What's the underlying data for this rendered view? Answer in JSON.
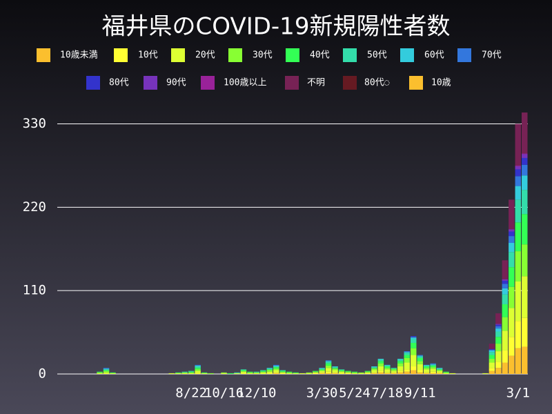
{
  "chart_data": {
    "type": "stacked-bar",
    "title": "福井県のCOVID-19新規陽性者数",
    "categories": [
      null,
      null,
      null,
      null,
      null,
      null,
      null,
      null,
      null,
      null,
      null,
      null,
      null,
      null,
      null,
      null,
      null,
      null,
      null,
      null,
      "8/22",
      null,
      null,
      null,
      null,
      "10/16",
      null,
      null,
      null,
      null,
      "12/10",
      null,
      null,
      null,
      null,
      null,
      null,
      null,
      null,
      null,
      "3/30",
      null,
      null,
      null,
      null,
      "5/24",
      null,
      null,
      null,
      null,
      "7/18",
      null,
      null,
      null,
      null,
      "9/11",
      null,
      null,
      null,
      null,
      null,
      null,
      null,
      null,
      null,
      null,
      null,
      null,
      null,
      null,
      "3/1",
      null
    ],
    "ylim": [
      0,
      366
    ],
    "yticks": [
      0,
      110,
      220,
      330
    ],
    "grid": true,
    "series": [
      {
        "name": "10歳未満",
        "color": "#fbbf2e",
        "values": [
          0,
          0,
          0,
          0,
          0,
          0,
          0,
          0,
          0,
          0,
          0,
          0,
          0,
          0,
          0,
          0,
          0,
          0,
          0,
          0,
          0,
          0,
          0,
          0,
          0,
          0,
          0,
          0,
          0,
          0,
          0,
          0,
          0,
          1,
          0,
          0,
          0,
          0,
          0,
          0,
          1,
          1,
          1,
          0,
          0,
          0,
          0,
          0,
          1,
          2,
          1,
          1,
          2,
          3,
          5,
          2,
          1,
          1,
          1,
          0,
          0,
          0,
          0,
          0,
          0,
          0,
          4,
          8,
          15,
          24,
          34,
          36
        ]
      },
      {
        "name": "10代",
        "color": "#ffff33",
        "values": [
          0,
          0,
          0,
          0,
          0,
          0,
          0,
          0,
          0,
          0,
          0,
          0,
          0,
          0,
          0,
          0,
          0,
          0,
          0,
          0,
          0,
          1,
          0,
          0,
          0,
          0,
          0,
          0,
          1,
          0,
          0,
          0,
          1,
          1,
          1,
          0,
          0,
          0,
          0,
          1,
          1,
          2,
          1,
          1,
          1,
          0,
          0,
          1,
          1,
          2,
          1,
          1,
          2,
          3,
          5,
          3,
          1,
          2,
          1,
          0,
          0,
          0,
          0,
          0,
          0,
          0,
          4,
          8,
          16,
          25,
          36,
          38
        ]
      },
      {
        "name": "20代",
        "color": "#ddff33",
        "values": [
          0,
          0,
          0,
          0,
          0,
          0,
          1,
          2,
          1,
          0,
          0,
          0,
          0,
          0,
          0,
          0,
          0,
          1,
          1,
          1,
          1,
          3,
          1,
          0,
          0,
          1,
          0,
          1,
          2,
          1,
          1,
          2,
          2,
          3,
          1,
          1,
          1,
          1,
          1,
          1,
          2,
          5,
          3,
          2,
          1,
          1,
          1,
          1,
          3,
          6,
          4,
          2,
          6,
          9,
          15,
          8,
          4,
          4,
          2,
          1,
          1,
          0,
          0,
          0,
          0,
          1,
          7,
          14,
          26,
          38,
          52,
          55
        ]
      },
      {
        "name": "30代",
        "color": "#88ff33",
        "values": [
          0,
          0,
          0,
          0,
          0,
          0,
          1,
          2,
          0,
          0,
          0,
          0,
          0,
          0,
          0,
          0,
          0,
          0,
          0,
          1,
          1,
          2,
          0,
          1,
          0,
          1,
          0,
          0,
          1,
          1,
          1,
          1,
          2,
          2,
          1,
          1,
          0,
          0,
          1,
          1,
          1,
          3,
          2,
          1,
          1,
          1,
          1,
          1,
          2,
          4,
          2,
          2,
          4,
          6,
          9,
          4,
          2,
          2,
          1,
          1,
          0,
          0,
          0,
          0,
          0,
          0,
          5,
          10,
          18,
          28,
          40,
          42
        ]
      },
      {
        "name": "40代",
        "color": "#33ff55",
        "values": [
          0,
          0,
          0,
          0,
          0,
          0,
          1,
          1,
          1,
          0,
          0,
          0,
          0,
          0,
          0,
          0,
          0,
          0,
          1,
          0,
          1,
          2,
          1,
          0,
          0,
          0,
          1,
          0,
          1,
          1,
          0,
          1,
          1,
          2,
          1,
          1,
          1,
          0,
          0,
          1,
          1,
          3,
          1,
          1,
          1,
          1,
          0,
          1,
          1,
          3,
          2,
          1,
          3,
          4,
          7,
          4,
          2,
          2,
          1,
          1,
          0,
          0,
          0,
          0,
          0,
          0,
          5,
          9,
          17,
          26,
          38,
          40
        ]
      },
      {
        "name": "50代",
        "color": "#33ddaa",
        "values": [
          0,
          0,
          0,
          0,
          0,
          0,
          0,
          1,
          0,
          0,
          0,
          0,
          0,
          0,
          0,
          0,
          0,
          0,
          0,
          1,
          1,
          2,
          0,
          0,
          0,
          0,
          0,
          1,
          1,
          0,
          1,
          1,
          1,
          1,
          1,
          0,
          0,
          0,
          0,
          0,
          1,
          2,
          1,
          1,
          0,
          0,
          0,
          0,
          1,
          2,
          1,
          1,
          2,
          3,
          5,
          2,
          1,
          1,
          1,
          0,
          0,
          0,
          0,
          0,
          0,
          0,
          4,
          7,
          13,
          20,
          30,
          32
        ]
      },
      {
        "name": "60代",
        "color": "#33ccdd",
        "values": [
          0,
          0,
          0,
          0,
          0,
          0,
          0,
          1,
          0,
          0,
          0,
          0,
          0,
          0,
          0,
          0,
          0,
          0,
          0,
          0,
          0,
          1,
          0,
          0,
          0,
          0,
          0,
          0,
          0,
          0,
          0,
          0,
          1,
          1,
          0,
          0,
          0,
          0,
          0,
          0,
          1,
          1,
          1,
          0,
          0,
          0,
          0,
          0,
          1,
          1,
          1,
          0,
          1,
          1,
          2,
          1,
          1,
          1,
          1,
          0,
          0,
          0,
          0,
          0,
          0,
          0,
          2,
          4,
          8,
          12,
          18,
          19
        ]
      },
      {
        "name": "70代",
        "color": "#3377dd",
        "values": [
          0,
          0,
          0,
          0,
          0,
          0,
          0,
          1,
          0,
          0,
          0,
          0,
          0,
          0,
          0,
          0,
          0,
          0,
          0,
          0,
          0,
          1,
          0,
          0,
          0,
          0,
          0,
          0,
          0,
          0,
          0,
          0,
          0,
          1,
          0,
          0,
          0,
          0,
          0,
          0,
          0,
          1,
          0,
          0,
          0,
          0,
          0,
          0,
          0,
          0,
          0,
          0,
          0,
          1,
          1,
          1,
          0,
          1,
          0,
          0,
          0,
          0,
          0,
          0,
          0,
          0,
          1,
          3,
          6,
          9,
          13,
          14
        ]
      },
      {
        "name": "80代",
        "color": "#3333cc",
        "values": [
          0,
          0,
          0,
          0,
          0,
          0,
          0,
          0,
          0,
          0,
          0,
          0,
          0,
          0,
          0,
          0,
          0,
          0,
          0,
          0,
          0,
          0,
          0,
          0,
          0,
          0,
          0,
          0,
          0,
          0,
          0,
          0,
          0,
          0,
          0,
          0,
          0,
          0,
          0,
          0,
          0,
          0,
          0,
          0,
          0,
          0,
          0,
          0,
          0,
          0,
          0,
          0,
          0,
          0,
          1,
          0,
          0,
          0,
          0,
          0,
          0,
          0,
          0,
          0,
          0,
          0,
          1,
          2,
          4,
          6,
          9,
          9
        ]
      },
      {
        "name": "90代",
        "color": "#7733bb",
        "values": [
          0,
          0,
          0,
          0,
          0,
          0,
          0,
          0,
          0,
          0,
          0,
          0,
          0,
          0,
          0,
          0,
          0,
          0,
          0,
          0,
          0,
          0,
          0,
          0,
          0,
          0,
          0,
          0,
          0,
          0,
          0,
          0,
          0,
          0,
          0,
          0,
          0,
          0,
          0,
          0,
          0,
          0,
          0,
          0,
          0,
          0,
          0,
          0,
          0,
          0,
          0,
          0,
          0,
          0,
          0,
          0,
          0,
          0,
          0,
          0,
          0,
          0,
          0,
          0,
          0,
          0,
          0,
          1,
          2,
          3,
          4,
          5
        ]
      },
      {
        "name": "100歳以上",
        "color": "#992299",
        "values": [
          0,
          0,
          0,
          0,
          0,
          0,
          0,
          0,
          0,
          0,
          0,
          0,
          0,
          0,
          0,
          0,
          0,
          0,
          0,
          0,
          0,
          0,
          0,
          0,
          0,
          0,
          0,
          0,
          0,
          0,
          0,
          0,
          0,
          0,
          0,
          0,
          0,
          0,
          0,
          0,
          0,
          0,
          0,
          0,
          0,
          0,
          0,
          0,
          0,
          0,
          0,
          0,
          0,
          0,
          0,
          0,
          0,
          0,
          0,
          0,
          0,
          0,
          0,
          0,
          0,
          0,
          0,
          0,
          0,
          0,
          1,
          1
        ]
      },
      {
        "name": "不明",
        "color": "#772255",
        "values": [
          0,
          0,
          0,
          0,
          0,
          0,
          0,
          0,
          0,
          0,
          0,
          0,
          0,
          0,
          0,
          0,
          0,
          0,
          0,
          0,
          0,
          0,
          0,
          0,
          0,
          0,
          0,
          0,
          0,
          0,
          0,
          0,
          0,
          0,
          0,
          0,
          0,
          0,
          0,
          0,
          0,
          0,
          0,
          0,
          0,
          0,
          0,
          0,
          0,
          0,
          0,
          0,
          0,
          0,
          0,
          0,
          0,
          0,
          0,
          0,
          0,
          0,
          0,
          0,
          0,
          0,
          7,
          14,
          25,
          39,
          55,
          54
        ]
      },
      {
        "name": "80代◌",
        "color": "#661a22",
        "values": [
          0,
          0,
          0,
          0,
          0,
          0,
          0,
          0,
          0,
          0,
          0,
          0,
          0,
          0,
          0,
          0,
          0,
          0,
          0,
          0,
          0,
          0,
          0,
          0,
          0,
          0,
          0,
          0,
          0,
          0,
          0,
          0,
          0,
          0,
          0,
          0,
          0,
          0,
          0,
          0,
          0,
          0,
          0,
          0,
          0,
          0,
          0,
          0,
          0,
          0,
          0,
          0,
          0,
          0,
          0,
          0,
          0,
          0,
          0,
          0,
          0,
          0,
          0,
          0,
          0,
          0,
          0,
          0,
          0,
          0,
          0,
          0
        ]
      },
      {
        "name": "10歳",
        "color": "#fbbf2e",
        "values": [
          0,
          0,
          0,
          0,
          0,
          0,
          0,
          0,
          0,
          0,
          0,
          0,
          0,
          0,
          0,
          0,
          0,
          0,
          0,
          0,
          0,
          0,
          0,
          0,
          0,
          0,
          0,
          0,
          0,
          0,
          0,
          0,
          0,
          0,
          0,
          0,
          0,
          0,
          0,
          0,
          0,
          0,
          0,
          0,
          0,
          0,
          0,
          0,
          0,
          0,
          0,
          0,
          0,
          0,
          0,
          0,
          0,
          0,
          0,
          0,
          0,
          0,
          0,
          0,
          0,
          0,
          0,
          0,
          0,
          0,
          0,
          0
        ]
      }
    ]
  }
}
